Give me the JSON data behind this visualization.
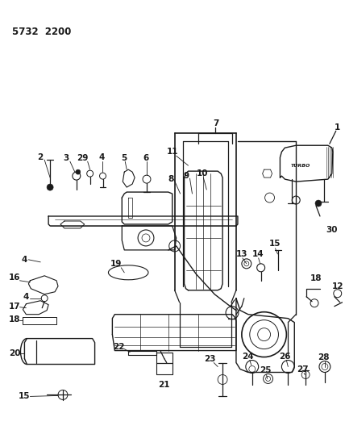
{
  "title": "5732  2200",
  "bg": "#ffffff",
  "lc": "#1a1a1a",
  "figsize": [
    4.28,
    5.33
  ],
  "dpi": 100
}
